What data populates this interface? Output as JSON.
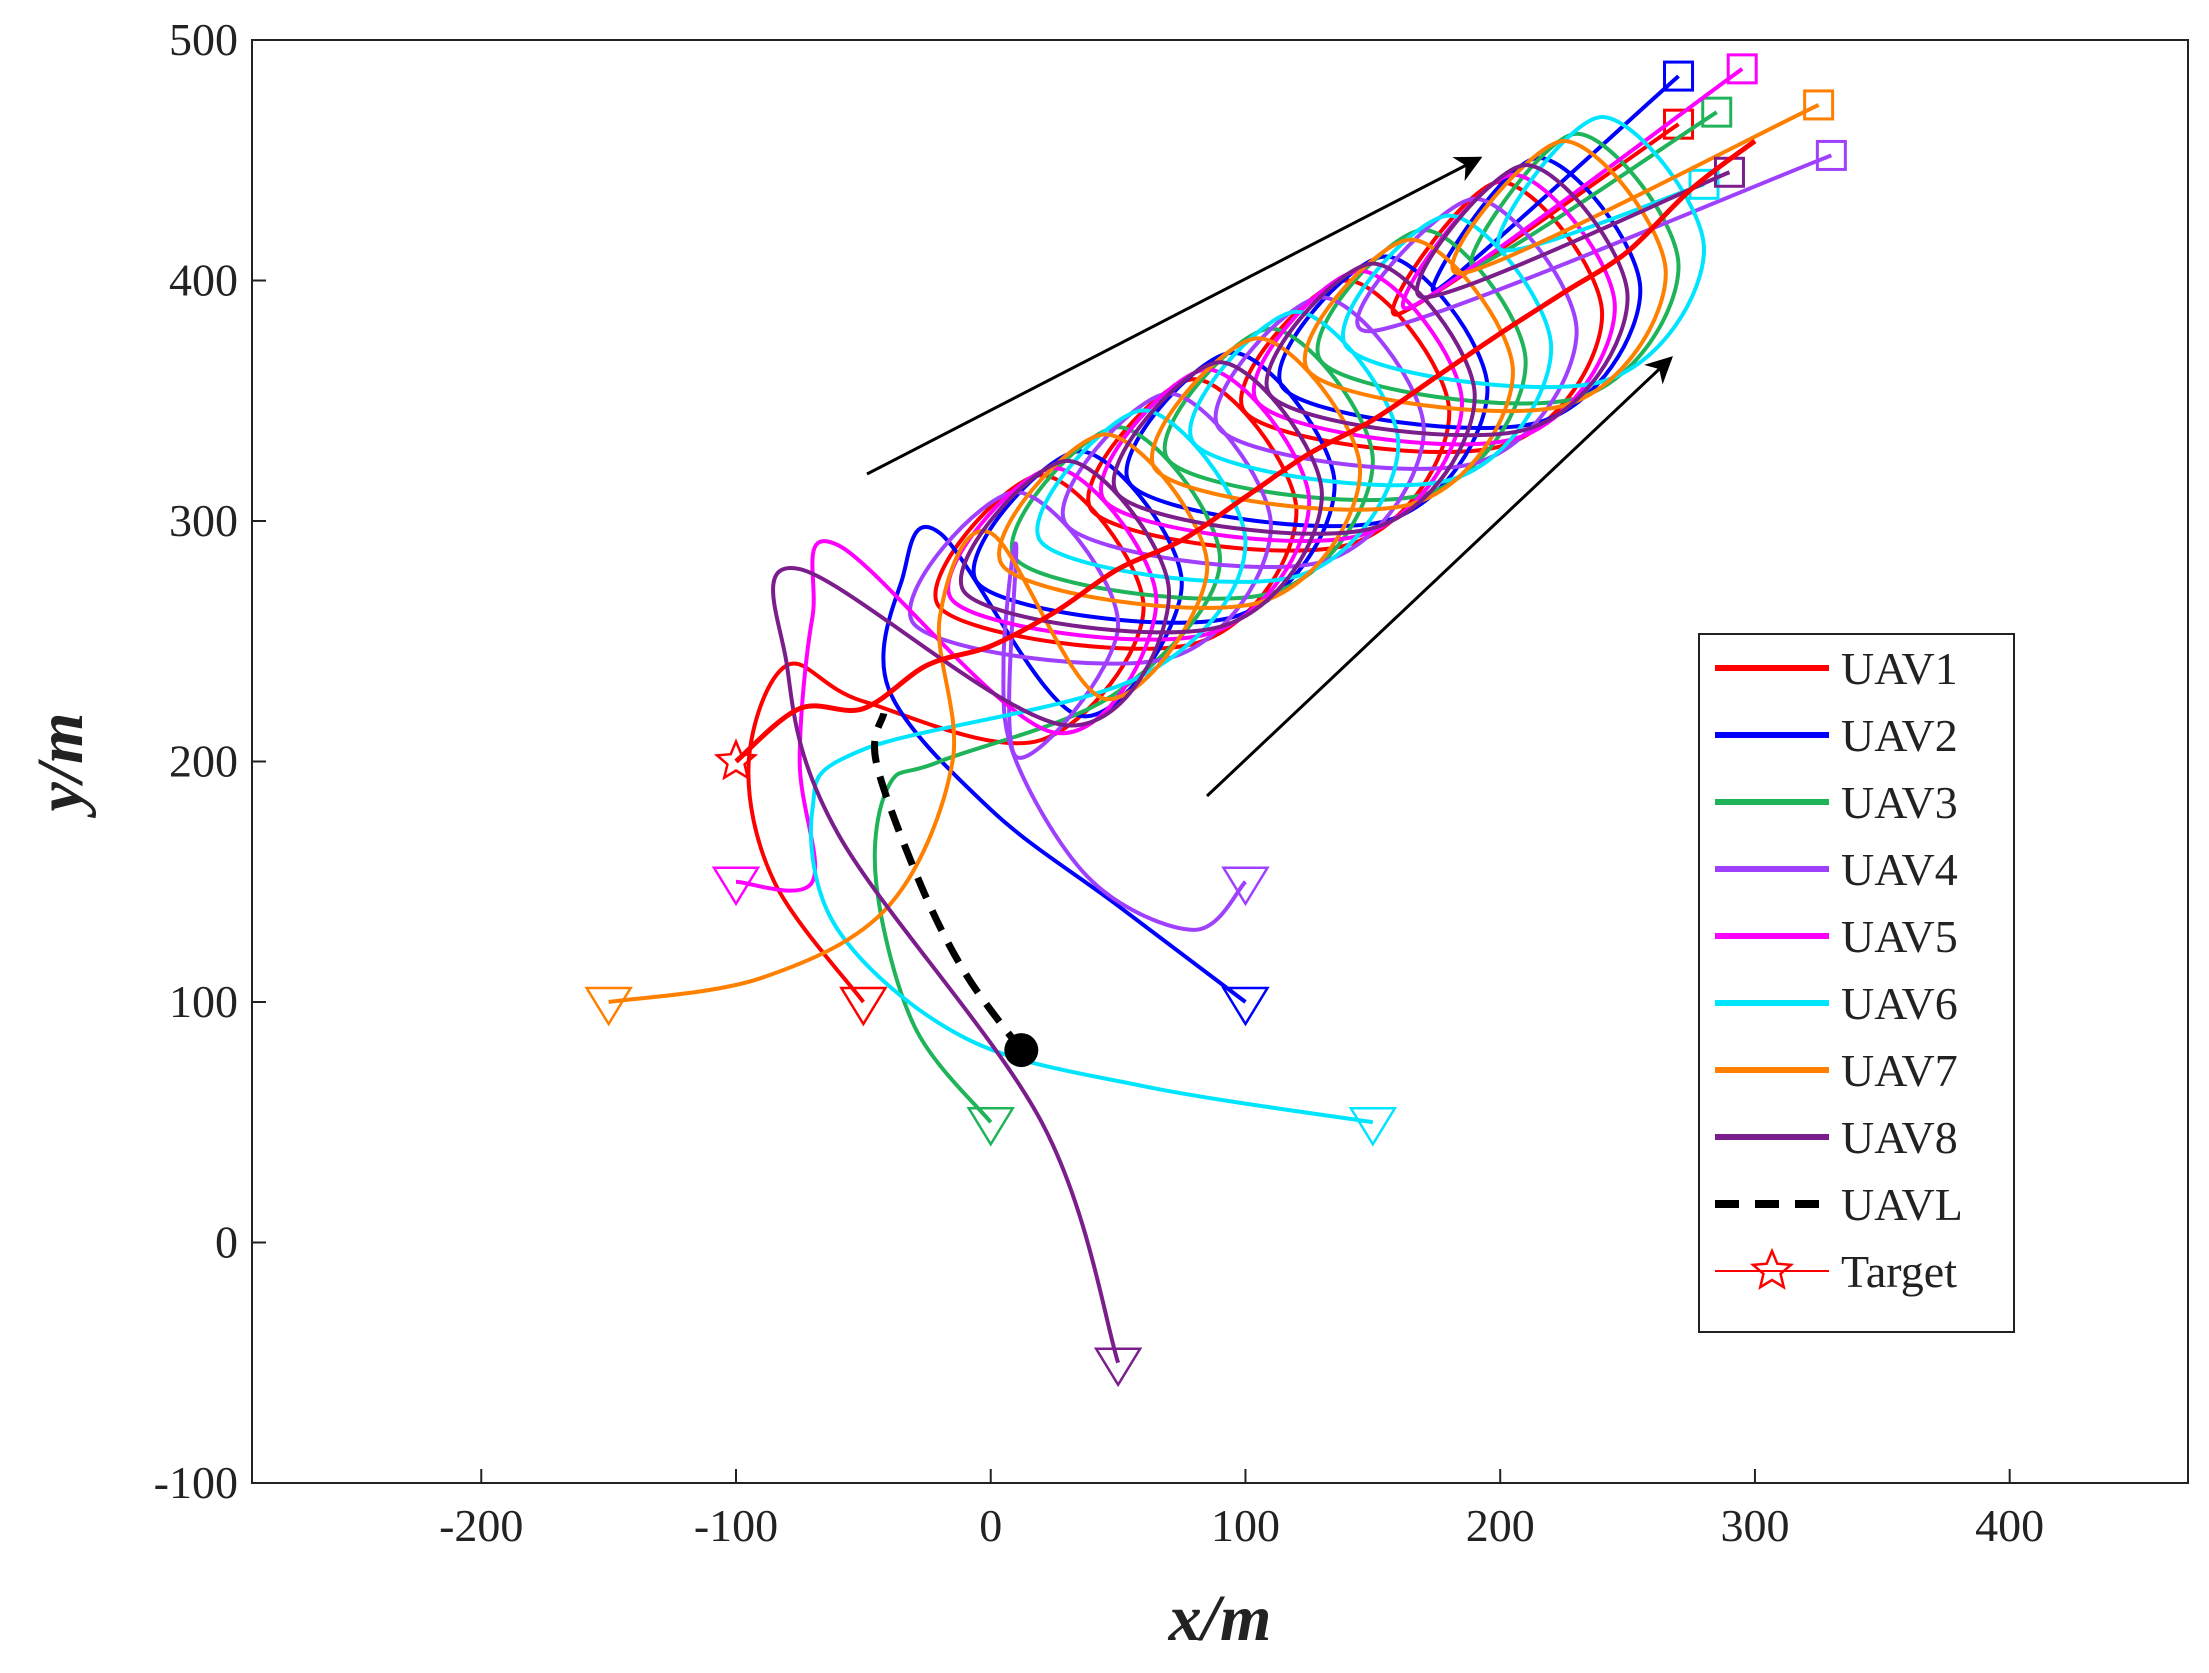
{
  "chart_data": {
    "type": "line",
    "x_label": "x/m",
    "y_label": "y/m",
    "xlim": [
      -290,
      470
    ],
    "ylim": [
      -100,
      500
    ],
    "xticks": [
      -200,
      -100,
      0,
      100,
      200,
      300,
      400
    ],
    "yticks": [
      -100,
      0,
      100,
      200,
      300,
      400,
      500
    ],
    "legend": "right",
    "series": [
      {
        "name": "UAV1",
        "color": "#ff0000",
        "x": [
          -50,
          -85,
          -95,
          -80,
          -50,
          20,
          60,
          20,
          -20,
          80,
          120,
          80,
          40,
          140,
          180,
          140,
          100,
          200,
          240,
          200,
          160,
          270
        ],
        "y": [
          100,
          150,
          200,
          240,
          225,
          209,
          264,
          319,
          264,
          249,
          304,
          359,
          304,
          290,
          345,
          400,
          345,
          331,
          386,
          441,
          386,
          465
        ]
      },
      {
        "name": "UAV2",
        "color": "#0000ff",
        "x": [
          100,
          50,
          0,
          -40,
          -35,
          -20,
          35,
          75,
          35,
          -5,
          95,
          135,
          95,
          55,
          155,
          195,
          155,
          115,
          215,
          255,
          215,
          175,
          270
        ],
        "y": [
          100,
          140,
          180,
          230,
          275,
          295,
          219,
          274,
          329,
          274,
          260,
          315,
          370,
          315,
          300,
          355,
          410,
          355,
          341,
          396,
          451,
          396,
          485
        ]
      },
      {
        "name": "UAV3",
        "color": "#1fb35a",
        "x": [
          0,
          -30,
          -45,
          -40,
          -20,
          50,
          90,
          50,
          10,
          110,
          150,
          110,
          70,
          170,
          210,
          170,
          130,
          230,
          270,
          230,
          190,
          285
        ],
        "y": [
          50,
          90,
          150,
          190,
          200,
          229,
          284,
          339,
          284,
          270,
          325,
          380,
          325,
          311,
          366,
          421,
          366,
          351,
          406,
          461,
          406,
          470
        ]
      },
      {
        "name": "UAV4",
        "color": "#a040ff",
        "x": [
          100,
          80,
          40,
          10,
          5,
          10,
          10,
          50,
          10,
          -30,
          70,
          110,
          70,
          30,
          130,
          170,
          130,
          90,
          190,
          230,
          190,
          150,
          330
        ],
        "y": [
          150,
          130,
          150,
          200,
          240,
          290,
          202,
          257,
          312,
          257,
          243,
          298,
          353,
          298,
          283,
          338,
          393,
          338,
          324,
          379,
          434,
          379,
          452
        ]
      },
      {
        "name": "UAV5",
        "color": "#ff00ff",
        "x": [
          -100,
          -70,
          -75,
          -70,
          -60,
          25,
          65,
          25,
          -15,
          85,
          125,
          85,
          45,
          145,
          185,
          145,
          105,
          205,
          245,
          205,
          165,
          295
        ],
        "y": [
          150,
          150,
          200,
          260,
          290,
          212,
          267,
          322,
          267,
          253,
          308,
          363,
          308,
          294,
          349,
          404,
          349,
          334,
          389,
          444,
          389,
          488
        ]
      },
      {
        "name": "UAV6",
        "color": "#00e5ff",
        "x": [
          150,
          60,
          -10,
          -60,
          -70,
          -50,
          60,
          100,
          60,
          20,
          120,
          160,
          120,
          80,
          180,
          220,
          180,
          140,
          240,
          280,
          240,
          200,
          280
        ],
        "y": [
          50,
          65,
          85,
          130,
          180,
          205,
          236,
          291,
          346,
          291,
          277,
          332,
          387,
          332,
          317,
          372,
          427,
          372,
          358,
          413,
          468,
          413,
          440
        ]
      },
      {
        "name": "UAV7",
        "color": "#ff8000",
        "x": [
          -150,
          -90,
          -40,
          -15,
          -20,
          0,
          45,
          85,
          45,
          5,
          105,
          145,
          105,
          65,
          165,
          205,
          165,
          125,
          225,
          265,
          225,
          185,
          325
        ],
        "y": [
          100,
          110,
          140,
          200,
          260,
          295,
          226,
          281,
          336,
          281,
          266,
          321,
          376,
          321,
          307,
          362,
          417,
          362,
          348,
          403,
          458,
          403,
          473
        ]
      },
      {
        "name": "UAV8",
        "color": "#7b1e8c",
        "x": [
          50,
          20,
          -60,
          -80,
          -75,
          30,
          70,
          30,
          -10,
          90,
          130,
          90,
          50,
          150,
          190,
          150,
          110,
          210,
          250,
          210,
          170,
          290
        ],
        "y": [
          -50,
          50,
          170,
          240,
          280,
          215,
          270,
          325,
          270,
          256,
          311,
          366,
          311,
          297,
          352,
          407,
          352,
          338,
          393,
          448,
          393,
          445
        ]
      },
      {
        "name": "UAVL",
        "color": "#000000",
        "dashed": true,
        "x": [
          12,
          -10,
          -28,
          -45,
          -42
        ],
        "y": [
          80,
          112,
          150,
          200,
          220
        ]
      },
      {
        "name": "Target",
        "color": "#ff0000",
        "marker": "star",
        "x": [
          -100,
          -75,
          -50,
          -25,
          0,
          25,
          50,
          75,
          100,
          125,
          150,
          175,
          200,
          225,
          250,
          275,
          300
        ],
        "y": [
          200,
          222,
          222,
          240,
          248,
          262,
          280,
          292,
          310,
          328,
          342,
          360,
          378,
          395,
          412,
          438,
          458
        ]
      }
    ]
  }
}
